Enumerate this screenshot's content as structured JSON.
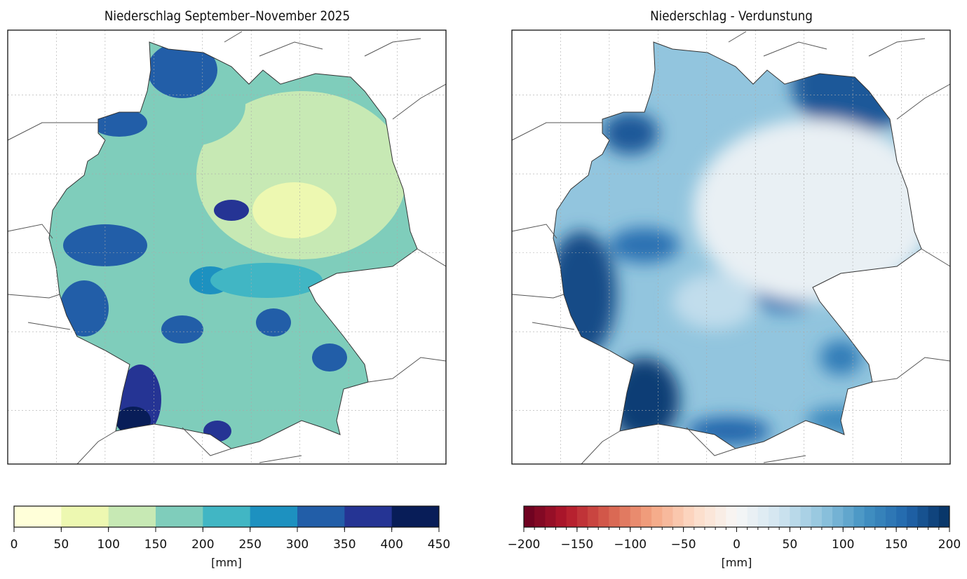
{
  "maps": [
    {
      "title": "Niederschlag September–November 2025",
      "colorbar": {
        "unit_label": "[mm]",
        "min": 0,
        "max": 450,
        "step": 50,
        "tick_labels": [
          "0",
          "50",
          "100",
          "150",
          "200",
          "250",
          "300",
          "350",
          "400",
          "450"
        ],
        "colors": [
          "#ffffd9",
          "#edf8b1",
          "#c7e9b4",
          "#7fcdbb",
          "#41b6c4",
          "#1d91c0",
          "#225ea8",
          "#253494",
          "#081d58"
        ]
      }
    },
    {
      "title": "Niederschlag - Verdunstung",
      "colorbar": {
        "unit_label": "[mm]",
        "min": -200,
        "max": 200,
        "step": 10,
        "tick_labels": [
          "−200",
          "−150",
          "−100",
          "−50",
          "0",
          "50",
          "100",
          "150",
          "200"
        ],
        "colormap": "RdBu",
        "anchor_colors": [
          "#67001f",
          "#b2182b",
          "#d6604d",
          "#f4a582",
          "#fddbc7",
          "#f7f7f7",
          "#d1e5f0",
          "#92c5de",
          "#4393c3",
          "#2166ac",
          "#053061"
        ]
      }
    }
  ]
}
